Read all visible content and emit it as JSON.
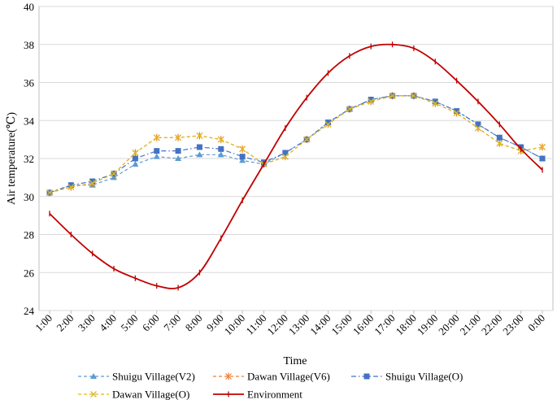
{
  "chart_data": {
    "type": "line",
    "title": "",
    "xlabel": "Time",
    "ylabel": "Air temperature(℃)",
    "ylim": [
      24,
      40
    ],
    "yticks": [
      24,
      26,
      28,
      30,
      32,
      34,
      36,
      38,
      40
    ],
    "grid": "horizontal",
    "legend_position": "bottom",
    "categories": [
      "1:00",
      "2:00",
      "3:00",
      "4:00",
      "5:00",
      "6:00",
      "7:00",
      "8:00",
      "9:00",
      "10:00",
      "11:00",
      "12:00",
      "13:00",
      "14:00",
      "15:00",
      "16:00",
      "17:00",
      "18:00",
      "19:00",
      "20:00",
      "21:00",
      "22:00",
      "23:00",
      "0:00"
    ],
    "series": [
      {
        "name": "Shuigu Village(V2)",
        "color": "#5b9bd5",
        "marker": "triangle",
        "dash": "dashed",
        "values": [
          30.2,
          30.6,
          30.6,
          31.0,
          31.7,
          32.1,
          32.0,
          32.2,
          32.2,
          31.9,
          31.7,
          32.3,
          33.0,
          33.9,
          34.6,
          35.1,
          35.3,
          35.3,
          35.0,
          34.5,
          33.8,
          33.1,
          32.6,
          32.0
        ]
      },
      {
        "name": "Dawan Village(V6)",
        "color": "#ed7d31",
        "marker": "star",
        "dash": "dashed",
        "values": [
          30.2,
          30.5,
          30.7,
          31.2,
          32.3,
          33.1,
          33.1,
          33.2,
          33.0,
          32.5,
          31.7,
          32.1,
          33.0,
          33.8,
          34.6,
          35.0,
          35.3,
          35.3,
          34.9,
          34.4,
          33.6,
          32.8,
          32.4,
          32.6
        ]
      },
      {
        "name": "Shuigu Village(O)",
        "color": "#4472c4",
        "marker": "square",
        "dash": "dashdot",
        "values": [
          30.2,
          30.6,
          30.8,
          31.2,
          32.0,
          32.4,
          32.4,
          32.6,
          32.5,
          32.1,
          31.8,
          32.3,
          33.0,
          33.9,
          34.6,
          35.1,
          35.3,
          35.3,
          35.0,
          34.5,
          33.8,
          33.1,
          32.6,
          32.0
        ]
      },
      {
        "name": "Dawan Village(O)",
        "color": "#dfb81e",
        "marker": "x",
        "dash": "dashed",
        "values": [
          30.2,
          30.5,
          30.7,
          31.2,
          32.3,
          33.1,
          33.1,
          33.2,
          33.0,
          32.5,
          31.7,
          32.1,
          33.0,
          33.8,
          34.6,
          35.0,
          35.3,
          35.3,
          34.9,
          34.4,
          33.6,
          32.8,
          32.4,
          32.6
        ]
      },
      {
        "name": "Environment",
        "color": "#c00000",
        "marker": "dash",
        "dash": "solid",
        "values": [
          29.1,
          28.0,
          27.0,
          26.2,
          25.7,
          25.3,
          25.2,
          26.0,
          27.8,
          29.8,
          31.7,
          33.6,
          35.2,
          36.5,
          37.4,
          37.9,
          38.0,
          37.8,
          37.1,
          36.1,
          35.0,
          33.8,
          32.5,
          31.4
        ]
      }
    ]
  }
}
